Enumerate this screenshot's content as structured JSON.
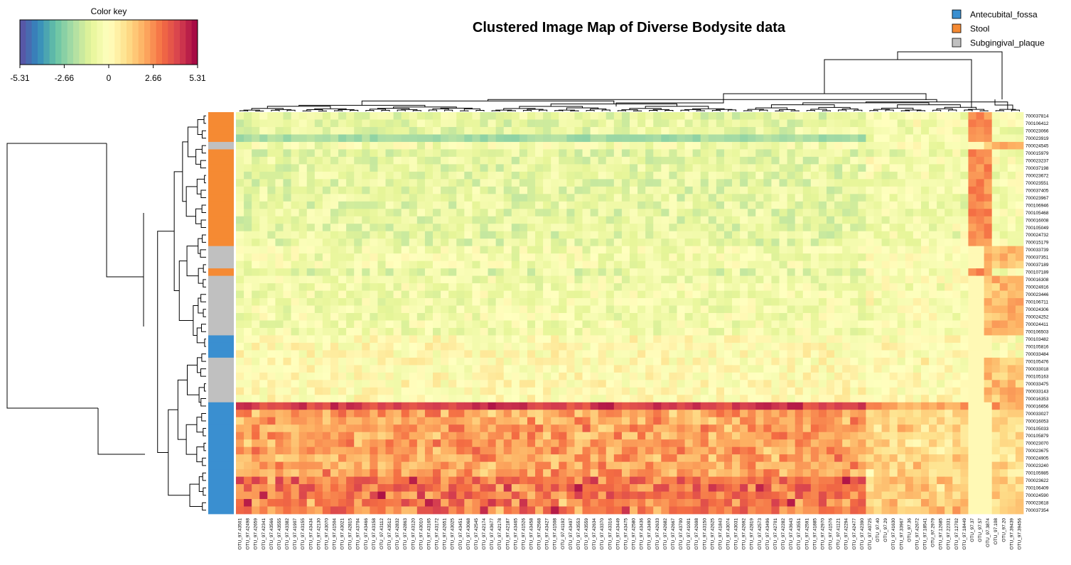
{
  "chart_data": {
    "type": "heatmap",
    "title": "Clustered Image Map of Diverse Bodysite data",
    "color_key": {
      "title": "Color key",
      "range": [
        -5.31,
        5.31
      ],
      "tick_values": [
        -5.31,
        -2.66,
        0,
        2.66,
        5.31
      ],
      "tick_labels": [
        "-5.31",
        "-2.66",
        "0",
        "2.66",
        "5.31"
      ],
      "palette": [
        "#5e4fa2",
        "#3288bd",
        "#66c2a5",
        "#abdda4",
        "#e6f598",
        "#ffffbf",
        "#fee08b",
        "#fdae61",
        "#f46d43",
        "#d53e4f",
        "#9e0142"
      ]
    },
    "legend": {
      "placement": "top-right",
      "items": [
        {
          "label": "Antecubital_fossa",
          "color": "#3a8fd0"
        },
        {
          "label": "Stool",
          "color": "#f58a33"
        },
        {
          "label": "Subgingival_plaque",
          "color": "#c0c0c0"
        }
      ]
    },
    "row_groups": [
      {
        "group": "Stool",
        "rows": 4
      },
      {
        "group": "Subgingival_plaque",
        "rows": 1
      },
      {
        "group": "Stool",
        "rows": 13
      },
      {
        "group": "Subgingival_plaque",
        "rows": 3
      },
      {
        "group": "Stool",
        "rows": 1
      },
      {
        "group": "Subgingival_plaque",
        "rows": 8
      },
      {
        "group": "Antecubital_fossa",
        "rows": 3
      },
      {
        "group": "Subgingival_plaque",
        "rows": 6
      },
      {
        "group": "Antecubital_fossa",
        "rows": 15
      }
    ],
    "row_labels": [
      "700037814",
      "700106412",
      "700023066",
      "700023919",
      "700024545",
      "700015979",
      "700023237",
      "700037198",
      "700023672",
      "700023551",
      "700037405",
      "700023967",
      "700106946",
      "700105468",
      "700016008",
      "700105049",
      "700024732",
      "700015179",
      "700033739",
      "700037351",
      "700037189",
      "700107189",
      "700016308",
      "700024916",
      "700023446",
      "700106711",
      "700024306",
      "700024252",
      "700024411",
      "700106503",
      "700103482",
      "700105816",
      "700033484",
      "700105476",
      "700033018",
      "700105163",
      "700033475",
      "700033143",
      "700016353",
      "700016656",
      "700033027",
      "700016053",
      "700105033",
      "700105879",
      "700023070",
      "700023675",
      "700024905",
      "700023240",
      "700105985",
      "700023622",
      "700106409",
      "700024590",
      "700023618",
      "700037354"
    ],
    "col_labels": [
      "OTU_97.43501",
      "OTU_97.42498",
      "OTU_97.42659",
      "OTU_97.42341",
      "OTU_97.43566",
      "OTU_97.43555",
      "OTU_97.43382",
      "OTU_97.41907",
      "OTU_97.43155",
      "OTU_97.43434",
      "OTU_97.42130",
      "OTU_97.43070",
      "OTU_97.41504",
      "OTU_97.43021",
      "OTU_97.42815",
      "OTU_97.43704",
      "OTU_97.43466",
      "OTU_97.43158",
      "OTU_97.43112",
      "OTU_97.43512",
      "OTU_97.42832",
      "OTU_97.42863",
      "OTU_97.43120",
      "OTU_97.43010",
      "OTU_97.43165",
      "OTU_97.43172",
      "OTU_97.42651",
      "OTU_97.43025",
      "OTU_97.43451",
      "OTU_97.43068",
      "OTU_97.42545",
      "OTU_97.42174",
      "OTU_97.43677",
      "OTU_97.42178",
      "OTU_97.42187",
      "OTU_97.43465",
      "OTU_97.41526",
      "OTU_97.43458",
      "OTU_97.42568",
      "OTU_97.43427",
      "OTU_97.41508",
      "OTU_97.41192",
      "OTU_97.43497",
      "OTU_97.43553",
      "OTU_97.43559",
      "OTU_97.42634",
      "OTU_97.43370",
      "OTU_97.43316",
      "OTU_97.43449",
      "OTU_97.43475",
      "OTU_97.42580",
      "OTU_97.43436",
      "OTU_97.43490",
      "OTU_97.42633",
      "OTU_97.42682",
      "OTU_97.42667",
      "OTU_97.43700",
      "OTU_97.41001",
      "OTU_97.42698",
      "OTU_97.43150",
      "OTU_97.42625",
      "OTU_97.41843",
      "OTU_97.43074",
      "OTU_97.43031",
      "OTU_97.42692",
      "OTU_97.42819",
      "OTU_97.42573",
      "OTU_97.43496",
      "OTU_97.42701",
      "OTU_97.42282",
      "OTU_97.43643",
      "OTU_97.43551",
      "OTU_97.42591",
      "OTU_97.41885",
      "OTU_97.42970",
      "OTU_97.41576",
      "OTU_97.41121",
      "OTU_97.42294",
      "OTU_97.42477",
      "OTU_97.42390",
      "OTU_97.40725",
      "OTU_97.40",
      "OTU_97.29",
      "OTU_97.41630",
      "OTU_97.33967",
      "OTU_97.36",
      "OTU_97.42672",
      "OTU_97.18541",
      "OTU_97.2979",
      "OTU_97.12685",
      "OTU_97.22331",
      "OTU_97.12702",
      "OTU_97.18449",
      "OTU_97.37",
      "OTU_97.57",
      "OTU_97.3874",
      "OTU_97.108",
      "OTU_97.20",
      "OTU_97.39439",
      "OTU_97.39456"
    ],
    "xlabel": "",
    "ylabel": ""
  }
}
